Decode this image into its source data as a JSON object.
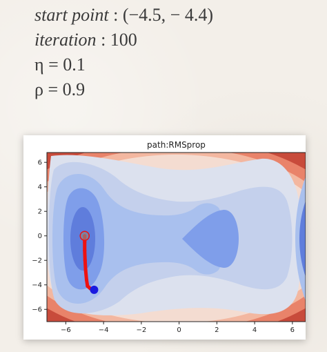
{
  "params": {
    "start_label": "start point",
    "start_value": ": (−4.5, − 4.4)",
    "iter_label": "iteration",
    "iter_value": ": 100",
    "eta": "η = 0.1",
    "rho": "ρ = 0.9"
  },
  "chart_data": {
    "type": "contour",
    "title": "path:RMSprop",
    "xlim": [
      -7,
      6.7
    ],
    "ylim": [
      -7,
      6.8
    ],
    "xticks": [
      -6,
      -4,
      -2,
      0,
      2,
      4,
      6
    ],
    "yticks": [
      -6,
      -4,
      -2,
      0,
      2,
      4,
      6
    ],
    "xtick_labels": [
      "−6",
      "−4",
      "−2",
      "0",
      "2",
      "4",
      "6"
    ],
    "ytick_labels": [
      "−6",
      "−4",
      "−2",
      "0",
      "2",
      "4",
      "6"
    ],
    "path": {
      "color": "#ee1111",
      "points": [
        [
          -4.5,
          -4.4
        ],
        [
          -4.7,
          -4.3
        ],
        [
          -4.85,
          -4.1
        ],
        [
          -4.9,
          -3.6
        ],
        [
          -4.95,
          -2.8
        ],
        [
          -4.98,
          -2.0
        ],
        [
          -5.0,
          -1.2
        ],
        [
          -5.0,
          -0.5
        ],
        [
          -5.0,
          0.0
        ]
      ]
    },
    "start_marker": {
      "x": -4.5,
      "y": -4.4,
      "color": "#1a1ae0"
    },
    "end_marker": {
      "x": -5.0,
      "y": 0.0,
      "color": "#888888"
    }
  }
}
